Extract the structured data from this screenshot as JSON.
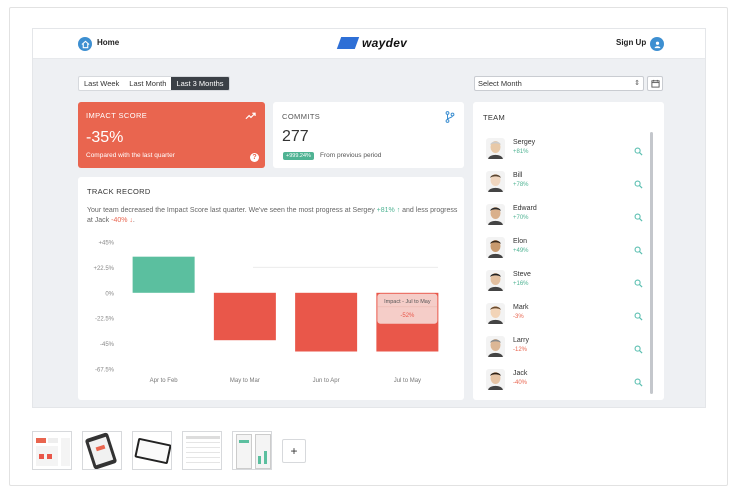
{
  "header": {
    "home_label": "Home",
    "logo_text": "waydev",
    "signup_label": "Sign Up",
    "brand_color": "#2e6fd6",
    "accent_color": "#3d8fd1"
  },
  "filters": {
    "periods": [
      {
        "label": "Last Week",
        "active": false
      },
      {
        "label": "Last Month",
        "active": false
      },
      {
        "label": "Last 3 Months",
        "active": true
      }
    ],
    "month_select": "Select Month",
    "calendar_icon": "calendar-icon"
  },
  "impact": {
    "title": "IMPACT SCORE",
    "value": "-35%",
    "caption": "Compared with the last quarter",
    "color": "#e9654f",
    "help": "?"
  },
  "commits": {
    "title": "COMMITS",
    "value": "277",
    "badge": "+999.24%",
    "caption": "From previous period",
    "badge_color": "#4fb393"
  },
  "track": {
    "title": "TRACK RECORD",
    "desc_prefix": "Your team decreased the Impact Score last quarter. We've seen the most progress at Sergey ",
    "up_value": "+81% ↑",
    "desc_mid": " and less progress at Jack ",
    "down_value": "-40% ↓",
    "desc_suffix": "."
  },
  "chart_data": {
    "type": "bar",
    "categories": [
      "Apr to Feb",
      "May to Mar",
      "Jun to Apr",
      "Jul to May"
    ],
    "values": [
      32,
      -42,
      -52,
      -52
    ],
    "y_ticks": [
      "+45%",
      "+22.5%",
      "0%",
      "-22.5%",
      "-45%",
      "-67.5%"
    ],
    "ylim": [
      -67.5,
      45
    ],
    "colors": {
      "positive": "#5bbf9f",
      "negative": "#e9574a"
    },
    "tooltip": {
      "title": "Impact - Jul to May",
      "value": "-52%"
    }
  },
  "team": {
    "title": "TEAM",
    "members": [
      {
        "name": "Sergey",
        "pct": "+81%",
        "trend": "up"
      },
      {
        "name": "Bill",
        "pct": "+78%",
        "trend": "up"
      },
      {
        "name": "Edward",
        "pct": "+70%",
        "trend": "up"
      },
      {
        "name": "Elon",
        "pct": "+49%",
        "trend": "up"
      },
      {
        "name": "Steve",
        "pct": "+16%",
        "trend": "up"
      },
      {
        "name": "Mark",
        "pct": "-3%",
        "trend": "down"
      },
      {
        "name": "Larry",
        "pct": "-12%",
        "trend": "down"
      },
      {
        "name": "Jack",
        "pct": "-40%",
        "trend": "down"
      }
    ],
    "up_color": "#4fb393",
    "down_color": "#e9654f"
  },
  "gallery": {
    "add_label": "+"
  }
}
